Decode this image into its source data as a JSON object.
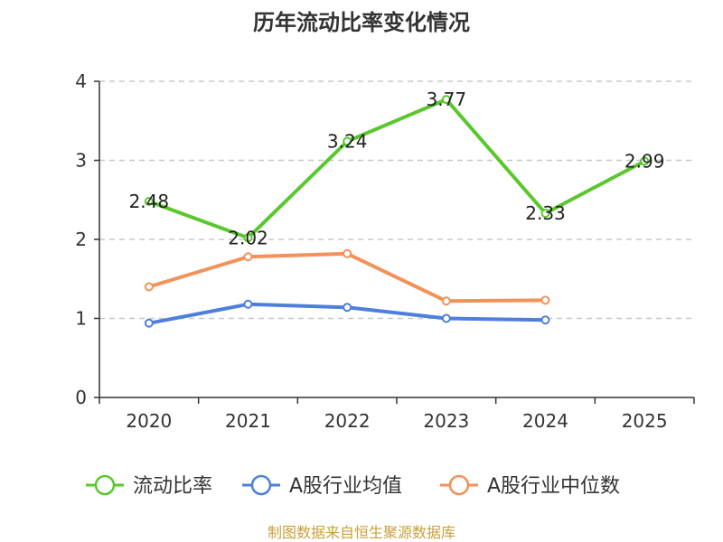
{
  "chart_data": {
    "type": "line",
    "title": "历年流动比率变化情况",
    "categories": [
      "2020",
      "2021",
      "2022",
      "2023",
      "2024",
      "2025"
    ],
    "ylim": [
      0,
      4
    ],
    "yticks": [
      "0",
      "1",
      "2",
      "3",
      "4"
    ],
    "grid": true,
    "legend_position": "bottom",
    "series": [
      {
        "name": "流动比率",
        "color": "#5ac72e",
        "values": [
          2.48,
          2.02,
          3.24,
          3.77,
          2.33,
          2.99
        ],
        "labels": [
          "2.48",
          "2.02",
          "3.24",
          "3.77",
          "2.33",
          "2.99"
        ]
      },
      {
        "name": "A股行业均值",
        "color": "#4f7fdc",
        "values": [
          0.94,
          1.18,
          1.14,
          1.0,
          0.98,
          null
        ]
      },
      {
        "name": "A股行业中位数",
        "color": "#f2915a",
        "values": [
          1.4,
          1.78,
          1.82,
          1.22,
          1.23,
          null
        ]
      }
    ],
    "source": "制图数据来自恒生聚源数据库"
  }
}
